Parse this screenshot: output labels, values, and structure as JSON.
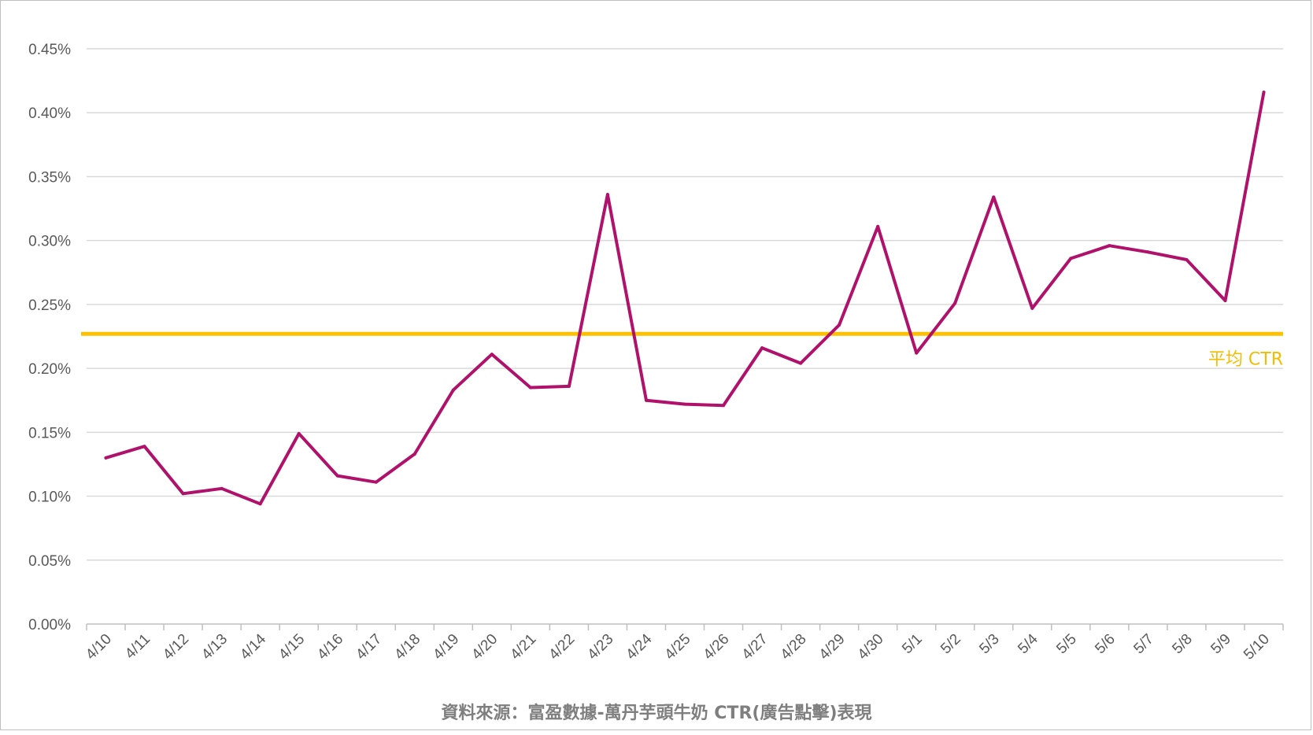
{
  "chart_data": {
    "type": "line",
    "categories": [
      "4/10",
      "4/11",
      "4/12",
      "4/13",
      "4/14",
      "4/15",
      "4/16",
      "4/17",
      "4/18",
      "4/19",
      "4/20",
      "4/21",
      "4/22",
      "4/23",
      "4/24",
      "4/25",
      "4/26",
      "4/27",
      "4/28",
      "4/29",
      "4/30",
      "5/1",
      "5/2",
      "5/3",
      "5/4",
      "5/5",
      "5/6",
      "5/7",
      "5/8",
      "5/9",
      "5/10"
    ],
    "series": [
      {
        "values": [
          0.13,
          0.139,
          0.102,
          0.106,
          0.094,
          0.149,
          0.116,
          0.111,
          0.133,
          0.183,
          0.211,
          0.185,
          0.186,
          0.336,
          0.175,
          0.172,
          0.171,
          0.216,
          0.204,
          0.234,
          0.311,
          0.212,
          0.251,
          0.334,
          0.247,
          0.286,
          0.296,
          0.291,
          0.285,
          0.253,
          0.416
        ],
        "color": "#b0126b"
      }
    ],
    "reference_line": {
      "label": "平均 CTR",
      "value": 0.227,
      "color": "#ffc000"
    },
    "y_ticks": [
      "0.00%",
      "0.05%",
      "0.10%",
      "0.15%",
      "0.20%",
      "0.25%",
      "0.30%",
      "0.35%",
      "0.40%",
      "0.45%"
    ],
    "ylim": [
      0,
      0.45
    ],
    "grid": true,
    "caption": "資料來源：富盈數據-萬丹芋頭牛奶 CTR(廣告點擊)表現"
  }
}
